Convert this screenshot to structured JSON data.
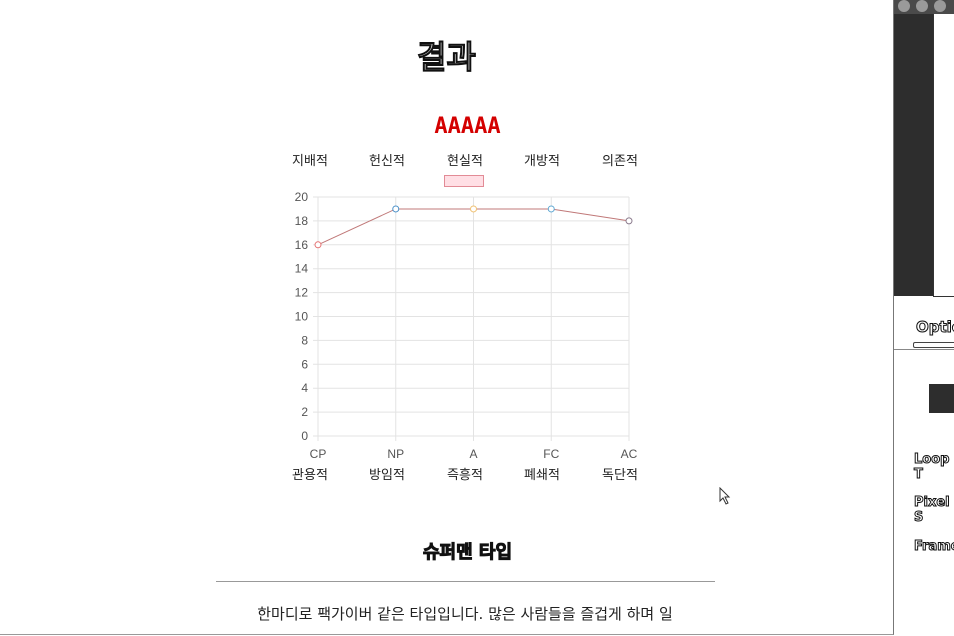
{
  "page": {
    "title": "결과",
    "result_code": "AAAAA",
    "type_name": "슈퍼맨 타입",
    "description": "한마디로 팩가이버 같은 타입입니다. 많은 사람들을 즐겁게 하며 일"
  },
  "traits_top": [
    "지배적",
    "헌신적",
    "현실적",
    "개방적",
    "의존적"
  ],
  "traits_bottom": [
    "관용적",
    "방임적",
    "즉흥적",
    "폐쇄적",
    "독단적"
  ],
  "chart_data": {
    "type": "line",
    "title": "",
    "categories": [
      "CP",
      "NP",
      "A",
      "FC",
      "AC"
    ],
    "series": [
      {
        "name": "",
        "values": [
          16,
          19,
          19,
          19,
          18
        ]
      }
    ],
    "point_colors": [
      "#e57373",
      "#4a90c8",
      "#f0c070",
      "#5fa8d3",
      "#8a7a8c"
    ],
    "line_color": "#c07878",
    "legend_fill": "#ffdfe5",
    "ylim": [
      0,
      20
    ],
    "yticks": [
      0,
      2,
      4,
      6,
      8,
      10,
      12,
      14,
      16,
      18,
      20
    ],
    "grid": true,
    "legend": "top"
  },
  "side_panel": {
    "tab_label": "Optio",
    "labels": [
      "Loop T",
      "Pixel S",
      "Frame"
    ]
  }
}
